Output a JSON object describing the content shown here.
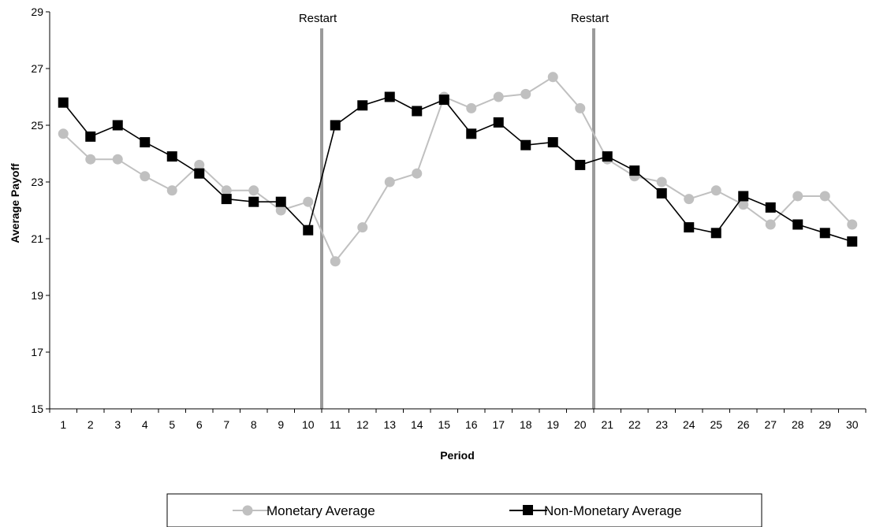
{
  "chart_data": {
    "type": "line",
    "title": "",
    "xlabel": "Period",
    "ylabel": "Average Payoff",
    "x": [
      1,
      2,
      3,
      4,
      5,
      6,
      7,
      8,
      9,
      10,
      11,
      12,
      13,
      14,
      15,
      16,
      17,
      18,
      19,
      20,
      21,
      22,
      23,
      24,
      25,
      26,
      27,
      28,
      29,
      30
    ],
    "ylim": [
      15,
      29
    ],
    "yticks": [
      15,
      17,
      19,
      21,
      23,
      25,
      27,
      29
    ],
    "grid": false,
    "legend_position": "bottom",
    "series": [
      {
        "name": "Monetary Average",
        "color": "#c0c0c0",
        "marker": "circle",
        "values": [
          24.7,
          23.8,
          23.8,
          23.2,
          22.7,
          23.6,
          22.7,
          22.7,
          22.0,
          22.3,
          20.2,
          21.4,
          23.0,
          23.3,
          26.0,
          25.6,
          26.0,
          26.1,
          26.7,
          25.6,
          23.8,
          23.2,
          23.0,
          22.4,
          22.7,
          22.2,
          21.5,
          22.5,
          22.5,
          21.5
        ]
      },
      {
        "name": "Non-Monetary Average",
        "color": "#000000",
        "marker": "square",
        "values": [
          25.8,
          24.6,
          25.0,
          24.4,
          23.9,
          23.3,
          22.4,
          22.3,
          22.3,
          21.3,
          25.0,
          25.7,
          26.0,
          25.5,
          25.9,
          24.7,
          25.1,
          24.3,
          24.4,
          23.6,
          23.9,
          23.4,
          22.6,
          21.4,
          21.2,
          22.5,
          22.1,
          21.5,
          21.2,
          20.9
        ]
      }
    ],
    "annotations": [
      {
        "text": "Restart",
        "x_between": [
          10,
          11
        ]
      },
      {
        "text": "Restart",
        "x_between": [
          20,
          21
        ]
      }
    ]
  }
}
